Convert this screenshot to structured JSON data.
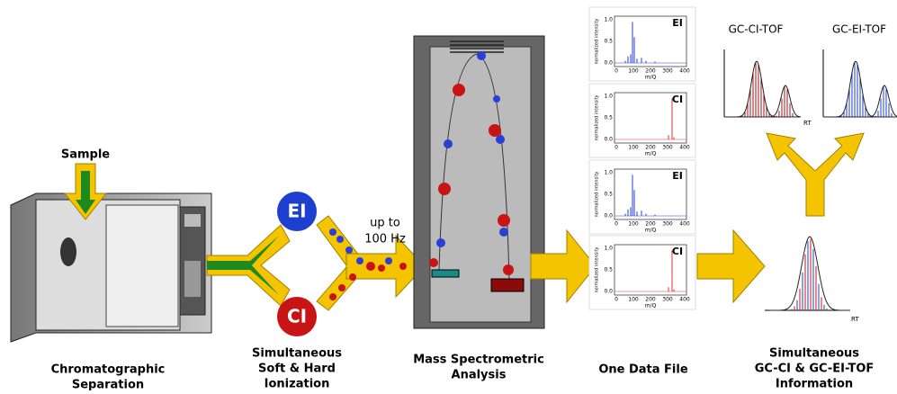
{
  "sample": "Sample",
  "gc_label": [
    "Chromatographic",
    "Separation"
  ],
  "ionization": {
    "ei": "EI",
    "ci": "CI",
    "rate": [
      "up to",
      "100 Hz"
    ],
    "label": [
      "Simultaneous",
      "Soft & Hard",
      "Ionization"
    ]
  },
  "ms_label": [
    "Mass Spectrometric",
    "Analysis"
  ],
  "data_file_label": "One Data File",
  "spectra": [
    {
      "label": "EI",
      "y_label": "normalized intensity",
      "x_label": "m/Q",
      "yticks": [
        "0.0",
        "0.5",
        "1.0"
      ],
      "xticks": [
        "0",
        "100",
        "200",
        "300",
        "400"
      ]
    },
    {
      "label": "CI",
      "y_label": "normalized intensity",
      "x_label": "m/Q",
      "yticks": [
        "0.0",
        "0.5",
        "1.0"
      ],
      "xticks": [
        "0",
        "100",
        "200",
        "300",
        "400"
      ]
    },
    {
      "label": "EI",
      "y_label": "normalized intensity",
      "x_label": "m/Q",
      "yticks": [
        "0.0",
        "0.5",
        "1.0"
      ],
      "xticks": [
        "0",
        "100",
        "200",
        "300",
        "400"
      ]
    },
    {
      "label": "CI",
      "y_label": "normalized intensity",
      "x_label": "m/Q",
      "yticks": [
        "0.0",
        "0.5",
        "1.0"
      ],
      "xticks": [
        "0",
        "100",
        "200",
        "300",
        "400"
      ]
    }
  ],
  "chromatograms": {
    "ci": "GC-CI-TOF",
    "ei": "GC-EI-TOF",
    "axis": "RT",
    "combined_axis": "RT"
  },
  "result_label": [
    "Simultaneous",
    "GC-CI & GC-EI-TOF",
    "Information"
  ]
}
